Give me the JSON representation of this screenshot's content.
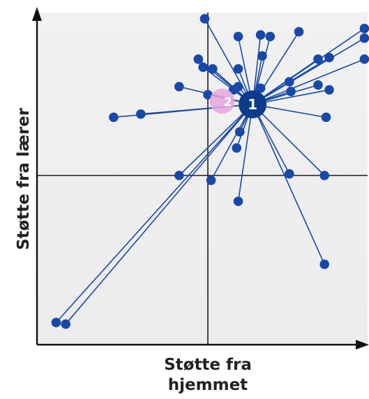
{
  "chart_data": {
    "type": "scatter",
    "xlabel": "Støtte fra hjemmet",
    "ylabel": "Støtte fra lærer",
    "xlim": [
      -100,
      100
    ],
    "ylim": [
      -100,
      100
    ],
    "reference_lines": {
      "x": 0,
      "y": 0
    },
    "grid": false,
    "legend": "none",
    "center_points": [
      {
        "label": "1",
        "x": 28,
        "y": 44,
        "color": "#0e3a8a"
      },
      {
        "label": "2",
        "x": 9,
        "y": 46,
        "color": "#e6a6de"
      }
    ],
    "points": [
      {
        "x": -2,
        "y": 97
      },
      {
        "x": 19,
        "y": 86
      },
      {
        "x": 33,
        "y": 87
      },
      {
        "x": 39,
        "y": 86
      },
      {
        "x": 57,
        "y": 89
      },
      {
        "x": 98,
        "y": 91
      },
      {
        "x": 98,
        "y": 85
      },
      {
        "x": 34,
        "y": 74
      },
      {
        "x": -6,
        "y": 72
      },
      {
        "x": 3,
        "y": 66
      },
      {
        "x": -3,
        "y": 67
      },
      {
        "x": 19,
        "y": 66
      },
      {
        "x": 69,
        "y": 72
      },
      {
        "x": 76,
        "y": 73
      },
      {
        "x": 98,
        "y": 72
      },
      {
        "x": 19,
        "y": 55
      },
      {
        "x": 33,
        "y": 54
      },
      {
        "x": 51,
        "y": 58
      },
      {
        "x": 69,
        "y": 56
      },
      {
        "x": 76,
        "y": 53
      },
      {
        "x": 52,
        "y": 52
      },
      {
        "x": -18,
        "y": 55
      },
      {
        "x": 16,
        "y": 53
      },
      {
        "x": 0,
        "y": 50
      },
      {
        "x": -42,
        "y": 38
      },
      {
        "x": -59,
        "y": 36
      },
      {
        "x": 74,
        "y": 36
      },
      {
        "x": 20,
        "y": 27
      },
      {
        "x": 18,
        "y": 17
      },
      {
        "x": -18,
        "y": 0
      },
      {
        "x": 2,
        "y": -3
      },
      {
        "x": 51,
        "y": 1
      },
      {
        "x": 73,
        "y": 0
      },
      {
        "x": 19,
        "y": -16
      },
      {
        "x": 73,
        "y": -55
      },
      {
        "x": -95,
        "y": -91
      },
      {
        "x": -89,
        "y": -92
      }
    ]
  }
}
